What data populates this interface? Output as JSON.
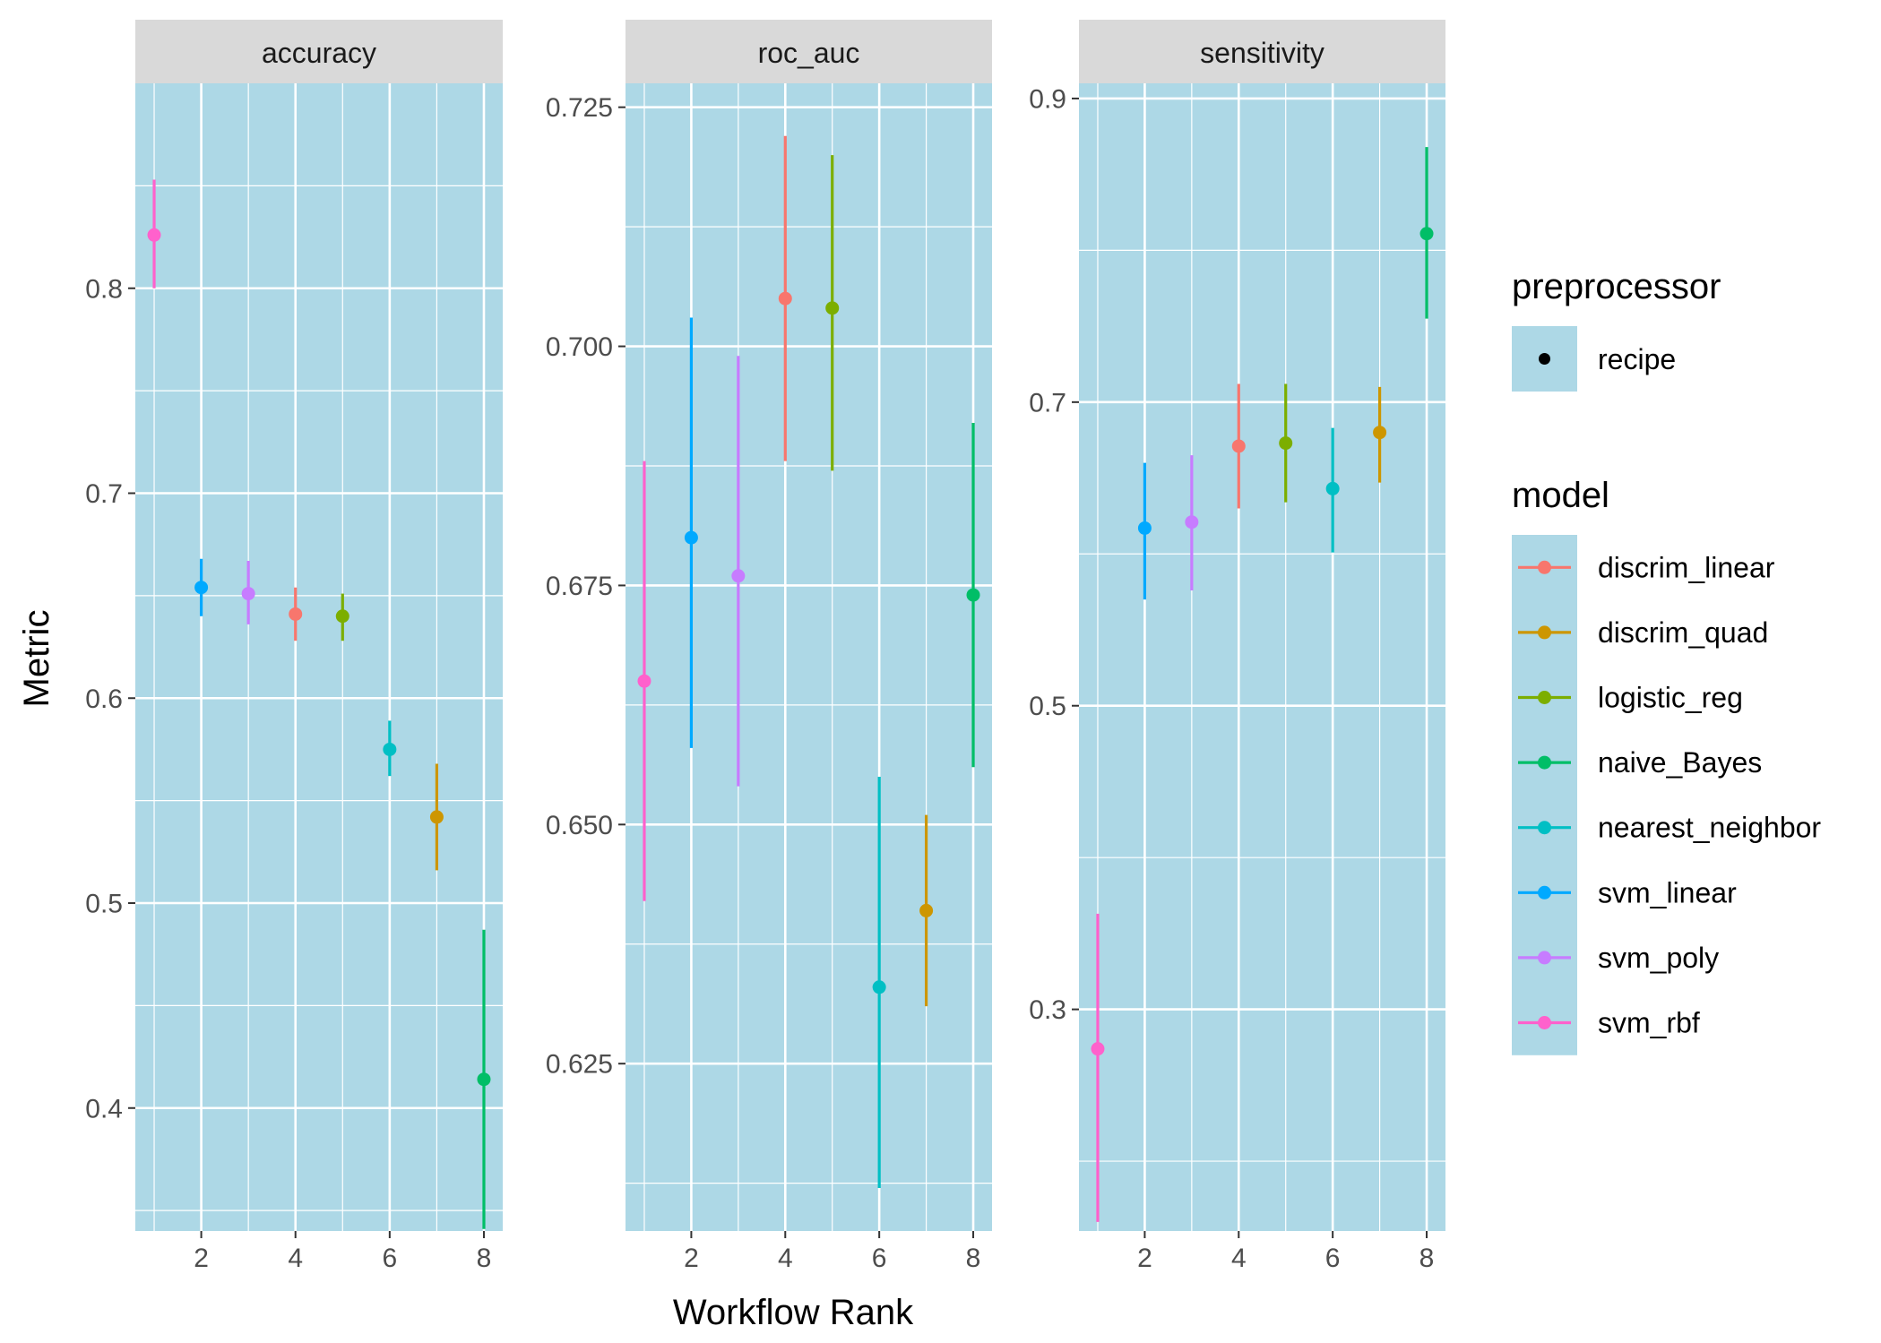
{
  "chart_data": {
    "type": "scatter",
    "xlabel": "Workflow Rank",
    "ylabel": "Metric",
    "panel_background": "#add8e6",
    "strip_background": "#d9d9d9",
    "grid": true,
    "legend_position": "right",
    "panels": [
      {
        "title": "accuracy",
        "ylim": [
          0.34,
          0.9
        ],
        "yticks": [
          0.4,
          0.5,
          0.6,
          0.7,
          0.8
        ],
        "ytick_labels": [
          "0.4",
          "0.5",
          "0.6",
          "0.7",
          "0.8"
        ],
        "xlim": [
          0.6,
          8.4
        ],
        "xticks": [
          2,
          4,
          6,
          8
        ],
        "xtick_labels": [
          "2",
          "4",
          "6",
          "8"
        ],
        "points": [
          {
            "rank": 1,
            "model": "svm_rbf",
            "mean": 0.826,
            "lower": 0.8,
            "upper": 0.853
          },
          {
            "rank": 2,
            "model": "svm_linear",
            "mean": 0.654,
            "lower": 0.64,
            "upper": 0.668
          },
          {
            "rank": 3,
            "model": "svm_poly",
            "mean": 0.651,
            "lower": 0.636,
            "upper": 0.667
          },
          {
            "rank": 4,
            "model": "discrim_linear",
            "mean": 0.641,
            "lower": 0.628,
            "upper": 0.654
          },
          {
            "rank": 5,
            "model": "logistic_reg",
            "mean": 0.64,
            "lower": 0.628,
            "upper": 0.651
          },
          {
            "rank": 6,
            "model": "nearest_neighbor",
            "mean": 0.575,
            "lower": 0.562,
            "upper": 0.589
          },
          {
            "rank": 7,
            "model": "discrim_quad",
            "mean": 0.542,
            "lower": 0.516,
            "upper": 0.568
          },
          {
            "rank": 8,
            "model": "naive_Bayes",
            "mean": 0.414,
            "lower": 0.341,
            "upper": 0.487
          }
        ]
      },
      {
        "title": "roc_auc",
        "ylim": [
          0.6075,
          0.7275
        ],
        "yticks": [
          0.625,
          0.65,
          0.675,
          0.7,
          0.725
        ],
        "ytick_labels": [
          "0.625",
          "0.650",
          "0.675",
          "0.700",
          "0.725"
        ],
        "xlim": [
          0.6,
          8.4
        ],
        "xticks": [
          2,
          4,
          6,
          8
        ],
        "xtick_labels": [
          "2",
          "4",
          "6",
          "8"
        ],
        "points": [
          {
            "rank": 1,
            "model": "svm_rbf",
            "mean": 0.665,
            "lower": 0.642,
            "upper": 0.688
          },
          {
            "rank": 2,
            "model": "svm_linear",
            "mean": 0.68,
            "lower": 0.658,
            "upper": 0.703
          },
          {
            "rank": 3,
            "model": "svm_poly",
            "mean": 0.676,
            "lower": 0.654,
            "upper": 0.699
          },
          {
            "rank": 4,
            "model": "discrim_linear",
            "mean": 0.705,
            "lower": 0.688,
            "upper": 0.722
          },
          {
            "rank": 5,
            "model": "logistic_reg",
            "mean": 0.704,
            "lower": 0.687,
            "upper": 0.72
          },
          {
            "rank": 6,
            "model": "nearest_neighbor",
            "mean": 0.633,
            "lower": 0.612,
            "upper": 0.655
          },
          {
            "rank": 7,
            "model": "discrim_quad",
            "mean": 0.641,
            "lower": 0.631,
            "upper": 0.651
          },
          {
            "rank": 8,
            "model": "naive_Bayes",
            "mean": 0.674,
            "lower": 0.656,
            "upper": 0.692
          }
        ]
      },
      {
        "title": "sensitivity",
        "ylim": [
          0.154,
          0.91
        ],
        "yticks": [
          0.3,
          0.5,
          0.7,
          0.9
        ],
        "ytick_labels": [
          "0.3",
          "0.5",
          "0.7",
          "0.9"
        ],
        "xlim": [
          0.6,
          8.4
        ],
        "xticks": [
          2,
          4,
          6,
          8
        ],
        "xtick_labels": [
          "2",
          "4",
          "6",
          "8"
        ],
        "points": [
          {
            "rank": 1,
            "model": "svm_rbf",
            "mean": 0.274,
            "lower": 0.16,
            "upper": 0.363
          },
          {
            "rank": 2,
            "model": "svm_linear",
            "mean": 0.617,
            "lower": 0.57,
            "upper": 0.66
          },
          {
            "rank": 3,
            "model": "svm_poly",
            "mean": 0.621,
            "lower": 0.576,
            "upper": 0.665
          },
          {
            "rank": 4,
            "model": "discrim_linear",
            "mean": 0.671,
            "lower": 0.63,
            "upper": 0.712
          },
          {
            "rank": 5,
            "model": "logistic_reg",
            "mean": 0.673,
            "lower": 0.634,
            "upper": 0.712
          },
          {
            "rank": 6,
            "model": "nearest_neighbor",
            "mean": 0.643,
            "lower": 0.601,
            "upper": 0.683
          },
          {
            "rank": 7,
            "model": "discrim_quad",
            "mean": 0.68,
            "lower": 0.647,
            "upper": 0.71
          },
          {
            "rank": 8,
            "model": "naive_Bayes",
            "mean": 0.811,
            "lower": 0.755,
            "upper": 0.868
          }
        ]
      }
    ],
    "legend": {
      "preprocessor": {
        "title": "preprocessor",
        "items": [
          "recipe"
        ],
        "color": "#000000"
      },
      "model": {
        "title": "model",
        "items": [
          {
            "label": "discrim_linear",
            "color": "#F8766D"
          },
          {
            "label": "discrim_quad",
            "color": "#CD9600"
          },
          {
            "label": "logistic_reg",
            "color": "#7CAE00"
          },
          {
            "label": "naive_Bayes",
            "color": "#00BE67"
          },
          {
            "label": "nearest_neighbor",
            "color": "#00BFC4"
          },
          {
            "label": "svm_linear",
            "color": "#00A9FF"
          },
          {
            "label": "svm_poly",
            "color": "#C77CFF"
          },
          {
            "label": "svm_rbf",
            "color": "#FF61CC"
          }
        ]
      }
    }
  }
}
